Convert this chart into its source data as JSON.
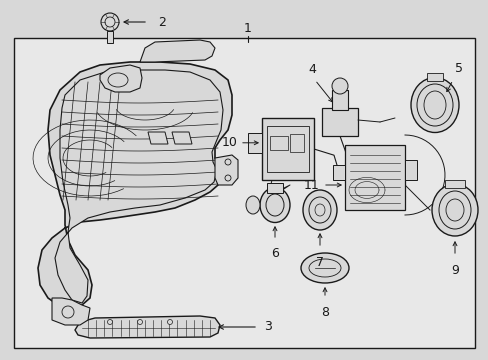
{
  "bg_color": "#d8d8d8",
  "box_color": "#e8e8e8",
  "line_color": "#1a1a1a",
  "fig_width": 4.89,
  "fig_height": 3.6,
  "dpi": 100,
  "white": "#ffffff",
  "gray_light": "#f0f0f0",
  "gray_mid": "#cccccc"
}
